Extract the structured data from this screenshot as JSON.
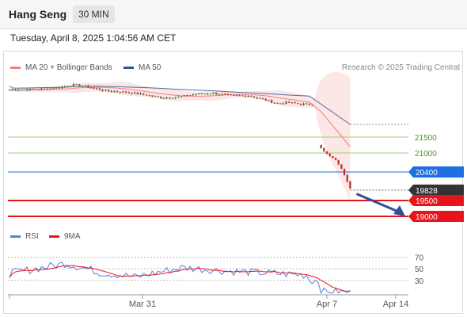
{
  "header": {
    "title": "Hang Seng",
    "interval": "30 MIN",
    "datetime": "Tuesday, April 8, 2025 1:04:56 AM CET"
  },
  "legend": {
    "ma20": "MA 20 + Bollinger Bands",
    "ma50": "MA 50",
    "credit": "Research © 2025 Trading Central",
    "rsi": "RSI",
    "ma9": "9MA"
  },
  "colors": {
    "ma20": "#f08080",
    "ma50": "#4a6fa5",
    "band": "#fde2e2",
    "resistance": "#9bd07a",
    "pivot": "#1f6fe0",
    "support": "#e8141b",
    "last": "#333333",
    "rsi": "#5b7fd6",
    "arrow": "#2f4f9a"
  },
  "chart_data": [
    {
      "type": "candlestick",
      "ylim": [
        18750,
        23450
      ],
      "levels": [
        {
          "value": 21500,
          "label": "21500",
          "kind": "resistance"
        },
        {
          "value": 21000,
          "label": "21000",
          "kind": "resistance"
        },
        {
          "value": 20400,
          "label": "20400",
          "kind": "pivot"
        },
        {
          "value": 19828,
          "label": "19828",
          "kind": "last"
        },
        {
          "value": 19500,
          "label": "19500",
          "kind": "support"
        },
        {
          "value": 19000,
          "label": "19000",
          "kind": "support"
        }
      ],
      "ma50_end": 21900,
      "ma20_end": 21200,
      "x_labels": [
        "Mar 31",
        "Apr 7",
        "Apr 14"
      ]
    },
    {
      "type": "line",
      "series": [
        {
          "name": "RSI"
        },
        {
          "name": "9MA"
        }
      ],
      "ylim": [
        5,
        90
      ],
      "y_ticks": [
        70,
        50,
        30
      ]
    }
  ]
}
